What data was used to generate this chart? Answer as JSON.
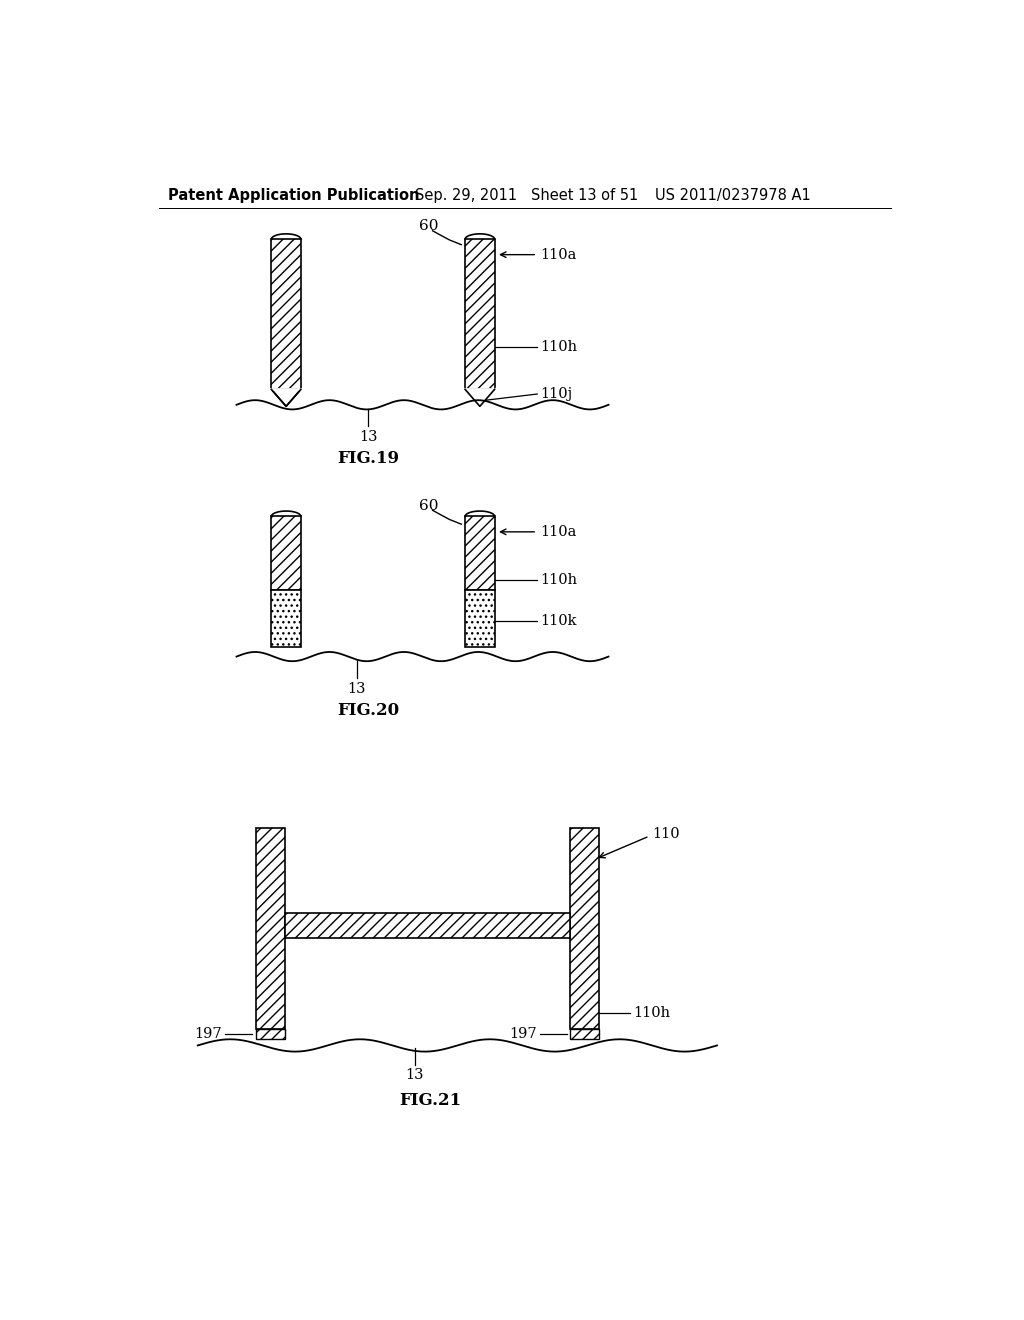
{
  "bg_color": "#ffffff",
  "header_text": "Patent Application Publication",
  "header_date": "Sep. 29, 2011",
  "header_sheet": "Sheet 13 of 51",
  "header_patent": "US 2011/0237978 A1",
  "fig19_label": "FIG.19",
  "fig20_label": "FIG.20",
  "fig21_label": "FIG.21",
  "text_color": "#000000",
  "line_color": "#000000"
}
